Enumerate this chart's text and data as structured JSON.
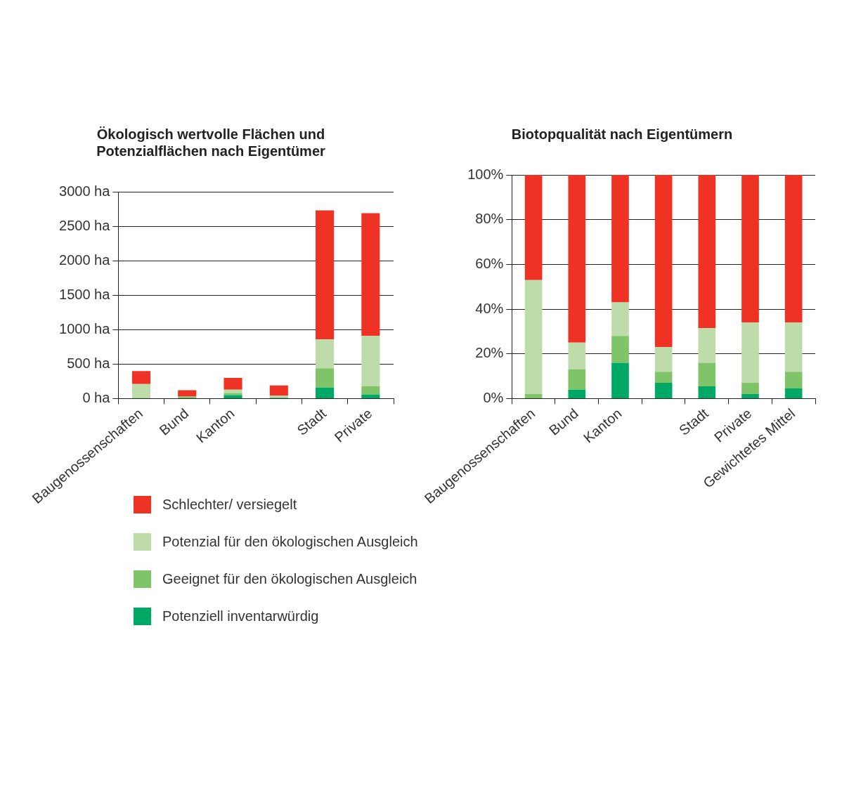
{
  "chart_data": [
    {
      "type": "bar",
      "title": "Ökologisch wertvolle Flächen und\nPotenzialflächen nach Eigentümer",
      "categories": [
        "Baugenossenschaften",
        "Bund",
        "Kanton",
        null,
        "Stadt",
        "Private"
      ],
      "stacked": true,
      "grid": "y",
      "legend": "bottom",
      "ylim": [
        0,
        3000
      ],
      "yticks": [
        {
          "value": 0,
          "label": "0 ha"
        },
        {
          "value": 500,
          "label": "500 ha"
        },
        {
          "value": 1000,
          "label": "1000 ha"
        },
        {
          "value": 1500,
          "label": "1500 ha"
        },
        {
          "value": 2000,
          "label": "2000 ha"
        },
        {
          "value": 2500,
          "label": "2500 ha"
        },
        {
          "value": 3000,
          "label": "3000 ha"
        }
      ],
      "series": [
        {
          "name": "Potenziell inventarwürdig",
          "color": "#00a866",
          "values": [
            0,
            null,
            50,
            10,
            160,
            60
          ]
        },
        {
          "name": "Geeignet für den ökologischen Ausgleich",
          "color": "#80c46a",
          "values": [
            10,
            30,
            30,
            10,
            280,
            120
          ]
        },
        {
          "name": "Potenzial für den ökologischen Ausgleich",
          "color": "#bedcaa",
          "values": [
            200,
            null,
            50,
            20,
            420,
            730
          ]
        },
        {
          "name": "Schlechter/ versiegelt",
          "color": "#ee3224",
          "values": [
            190,
            90,
            170,
            150,
            1870,
            1780
          ]
        }
      ]
    },
    {
      "type": "bar",
      "title": "Biotopqualität nach Eigentümern",
      "categories": [
        "Baugenossenschaften",
        "Bund",
        "Kanton",
        null,
        "Stadt",
        "Private",
        "Gewichtetes Mittel"
      ],
      "stacked": true,
      "grid": "y",
      "ylim": [
        0,
        100
      ],
      "yticks": [
        {
          "value": 0,
          "label": "0%"
        },
        {
          "value": 20,
          "label": "20%"
        },
        {
          "value": 40,
          "label": "40%"
        },
        {
          "value": 60,
          "label": "60%"
        },
        {
          "value": 80,
          "label": "80%"
        },
        {
          "value": 100,
          "label": "100%"
        }
      ],
      "series": [
        {
          "color": "#00a866",
          "values": [
            0,
            4,
            16,
            7,
            5.5,
            2,
            4.5
          ]
        },
        {
          "color": "#80c46a",
          "values": [
            2,
            9,
            12,
            5,
            10.5,
            5,
            7.5
          ]
        },
        {
          "color": "#bedcaa",
          "values": [
            51,
            12,
            15,
            11,
            15.5,
            27,
            22
          ]
        },
        {
          "color": "#ee3224",
          "values": [
            47,
            75,
            57,
            77,
            68.5,
            66,
            66
          ]
        }
      ]
    }
  ]
}
